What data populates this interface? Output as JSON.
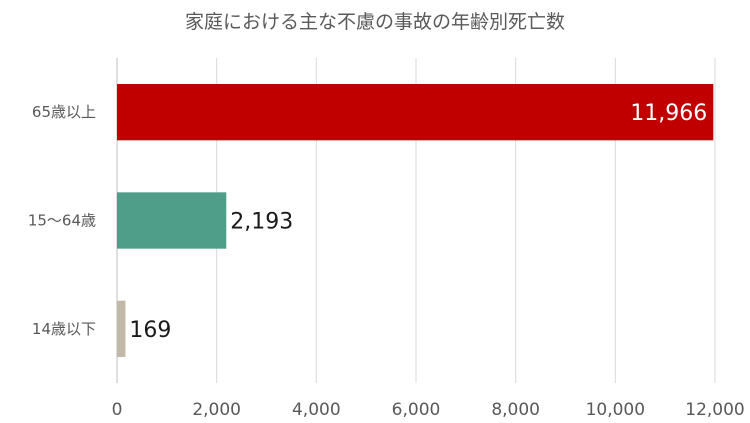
{
  "chart_data": {
    "type": "bar",
    "orientation": "horizontal",
    "title": "家庭における主な不慮の事故の年齢別死亡数",
    "categories": [
      "65歳以上",
      "15〜64歳",
      "14歳以下"
    ],
    "values": [
      11966,
      2193,
      169
    ],
    "value_labels": [
      "11,966",
      "2,193",
      "169"
    ],
    "bar_colors": [
      "#C00000",
      "#4F9E89",
      "#C2B8A8"
    ],
    "data_label_colors": [
      "#ffffff",
      "#1a1a1a",
      "#1a1a1a"
    ],
    "xlim": [
      0,
      12000
    ],
    "xticks": [
      0,
      2000,
      4000,
      6000,
      8000,
      10000,
      12000
    ],
    "xtick_labels": [
      "0",
      "2,000",
      "4,000",
      "6,000",
      "8,000",
      "10,000",
      "12,000"
    ],
    "grid": "vertical",
    "legend": "none"
  }
}
